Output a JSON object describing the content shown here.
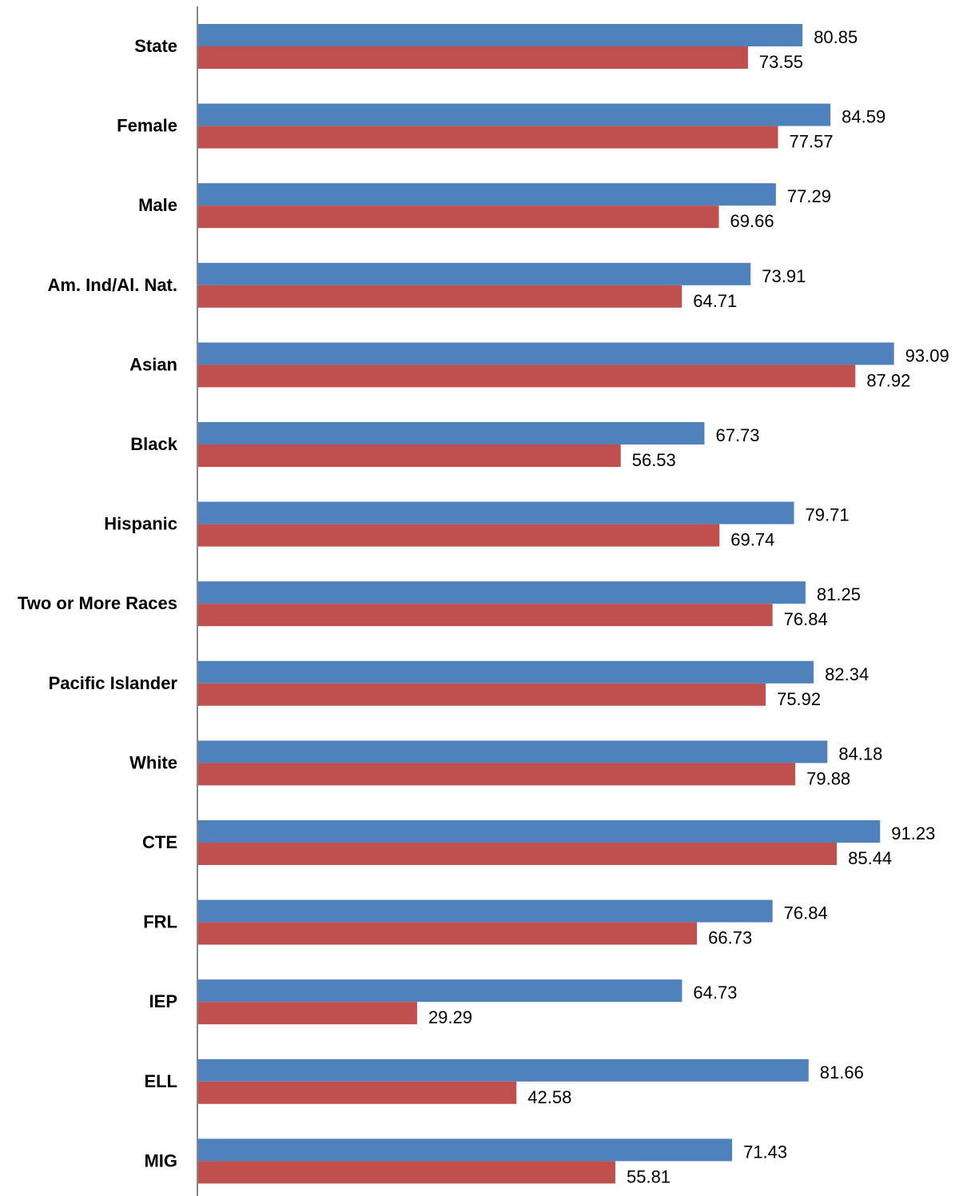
{
  "chart_data": {
    "type": "bar",
    "orientation": "horizontal",
    "categories": [
      "State",
      "Female",
      "Male",
      "Am. Ind/Al. Nat.",
      "Asian",
      "Black",
      "Hispanic",
      "Two or More Races",
      "Pacific Islander",
      "White",
      "CTE",
      "FRL",
      "IEP",
      "ELL",
      "MIG"
    ],
    "series": [
      {
        "color": "#4f81bd",
        "values": [
          80.85,
          84.59,
          77.29,
          73.91,
          93.09,
          67.73,
          79.71,
          81.25,
          82.34,
          84.18,
          91.23,
          76.84,
          64.73,
          81.66,
          71.43
        ],
        "labels": [
          "80.85",
          "84.59",
          "77.29",
          "73.91",
          "93.09",
          "67.73",
          "79.71",
          "81.25",
          "82.34",
          "84.18",
          "91.23",
          "76.84",
          "64.73",
          "81.66",
          "71.43"
        ]
      },
      {
        "color": "#c0504d",
        "values": [
          73.55,
          77.57,
          69.66,
          64.71,
          87.92,
          56.53,
          69.74,
          76.84,
          75.92,
          79.88,
          85.44,
          66.73,
          29.29,
          42.58,
          55.81
        ],
        "labels": [
          "73.55",
          "77.57",
          "69.66",
          "64.71",
          "87.92",
          "56.53",
          "69.74",
          "76.84",
          "75.92",
          "79.88",
          "85.44",
          "66.73",
          "29.29",
          "42.58",
          "55.81"
        ]
      }
    ],
    "xlim": [
      0,
      100
    ],
    "title": "",
    "xlabel": "",
    "ylabel": "",
    "grid": false,
    "legend": "none"
  }
}
